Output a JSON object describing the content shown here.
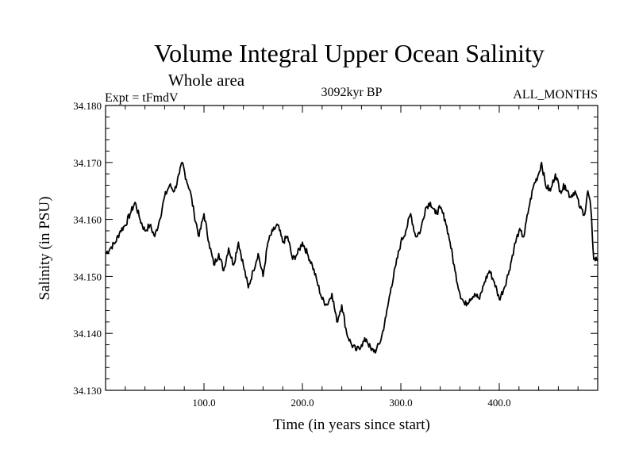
{
  "chart_data": {
    "type": "line",
    "title": "Volume Integral Upper Ocean Salinity",
    "subtitle": "Whole area",
    "expt_label": "Expt = tFmdV",
    "time_label": "3092kyr BP",
    "months_label": "ALL_MONTHS",
    "xlabel": "Time (in years since start)",
    "ylabel": "Salinity (in PSU)",
    "xlim": [
      0,
      500
    ],
    "ylim": [
      34.13,
      34.18
    ],
    "x_ticks": [
      100,
      200,
      300,
      400
    ],
    "x_tick_labels": [
      "100.0",
      "200.0",
      "300.0",
      "400.0"
    ],
    "y_ticks": [
      34.13,
      34.14,
      34.15,
      34.16,
      34.17,
      34.18
    ],
    "y_tick_labels": [
      "34.130",
      "34.140",
      "34.150",
      "34.160",
      "34.170",
      "34.180"
    ],
    "line_color": "#000000",
    "series": [
      {
        "name": "salinity",
        "x": [
          0,
          5,
          10,
          15,
          20,
          25,
          30,
          35,
          40,
          45,
          50,
          55,
          60,
          65,
          70,
          75,
          78,
          82,
          86,
          90,
          95,
          100,
          105,
          110,
          115,
          120,
          125,
          130,
          135,
          140,
          145,
          150,
          155,
          160,
          165,
          170,
          175,
          180,
          185,
          190,
          195,
          200,
          205,
          210,
          215,
          220,
          225,
          230,
          235,
          240,
          245,
          250,
          255,
          260,
          265,
          270,
          275,
          280,
          285,
          290,
          295,
          300,
          305,
          310,
          315,
          320,
          325,
          330,
          335,
          340,
          345,
          350,
          355,
          360,
          365,
          370,
          375,
          380,
          385,
          390,
          395,
          400,
          405,
          410,
          415,
          420,
          425,
          430,
          435,
          440,
          443,
          447,
          452,
          457,
          462,
          467,
          472,
          477,
          482,
          487,
          490,
          493,
          496,
          500
        ],
        "values": [
          34.154,
          34.155,
          34.156,
          34.158,
          34.159,
          34.161,
          34.163,
          34.16,
          34.158,
          34.159,
          34.157,
          34.16,
          34.164,
          34.166,
          34.165,
          34.168,
          34.17,
          34.167,
          34.165,
          34.161,
          34.157,
          34.161,
          34.156,
          34.152,
          34.154,
          34.151,
          34.155,
          34.152,
          34.156,
          34.152,
          34.148,
          34.151,
          34.154,
          34.15,
          34.156,
          34.158,
          34.159,
          34.156,
          34.157,
          34.153,
          34.154,
          34.156,
          34.154,
          34.152,
          34.149,
          34.146,
          34.145,
          34.147,
          34.142,
          34.145,
          34.14,
          34.138,
          34.137,
          34.138,
          34.139,
          34.137,
          34.137,
          34.139,
          34.143,
          34.148,
          34.152,
          34.156,
          34.158,
          34.161,
          34.157,
          34.158,
          34.162,
          34.163,
          34.161,
          34.162,
          34.16,
          34.156,
          34.151,
          34.147,
          34.145,
          34.146,
          34.147,
          34.146,
          34.149,
          34.151,
          34.149,
          34.146,
          34.148,
          34.151,
          34.155,
          34.158,
          34.157,
          34.162,
          34.166,
          34.168,
          34.17,
          34.166,
          34.165,
          34.168,
          34.165,
          34.166,
          34.164,
          34.165,
          34.162,
          34.161,
          34.165,
          34.162,
          34.153,
          34.153
        ]
      }
    ]
  }
}
